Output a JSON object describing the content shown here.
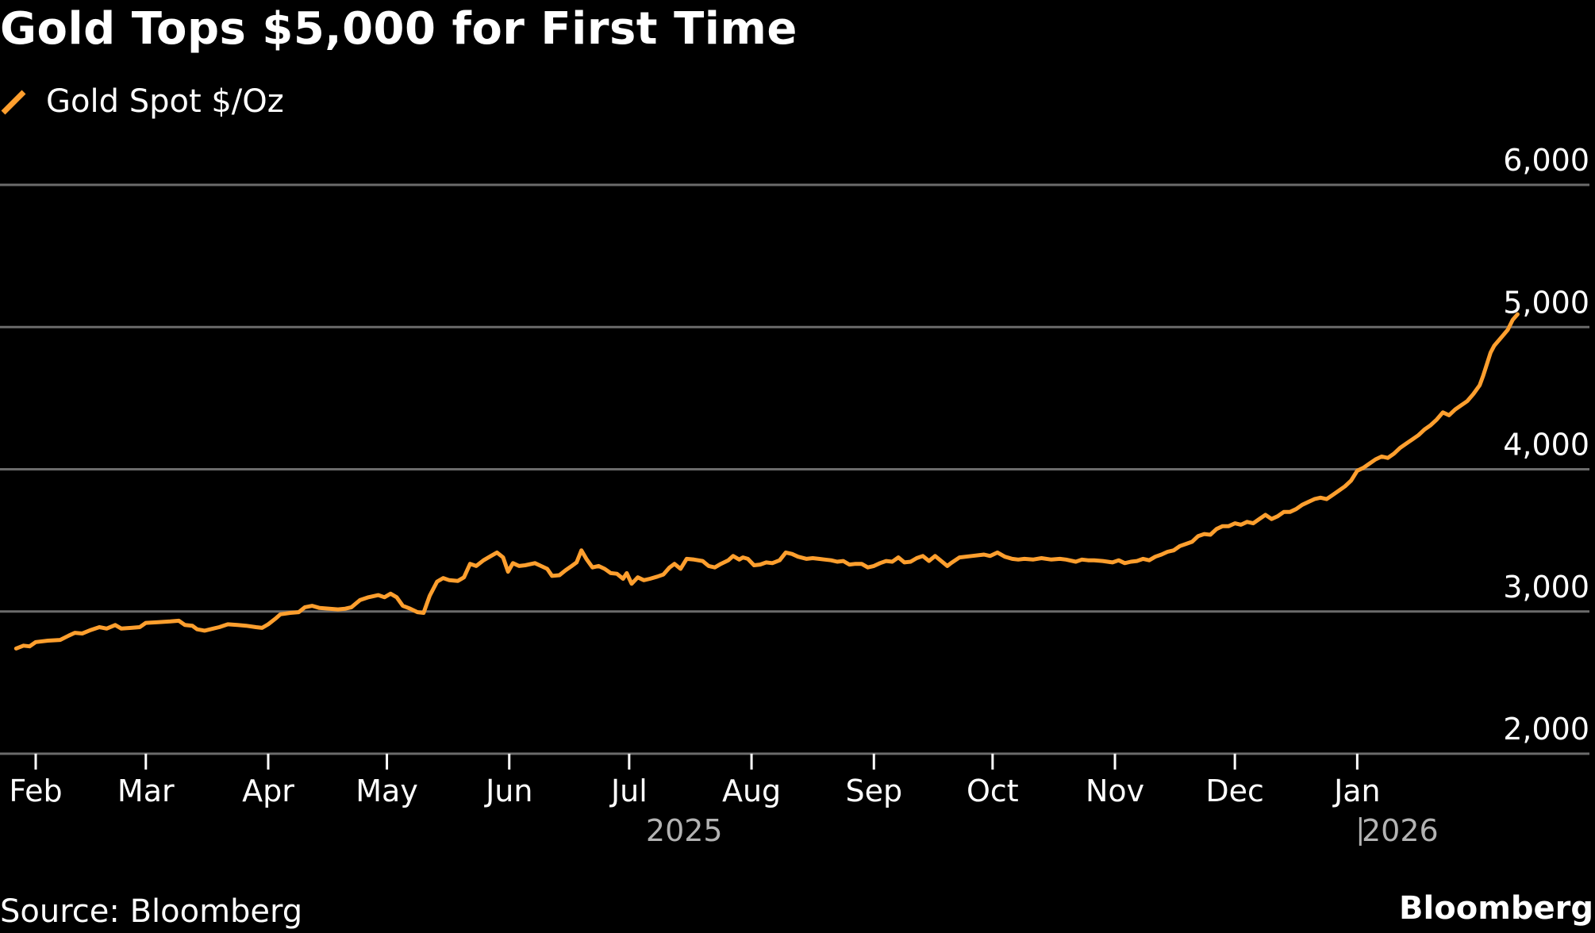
{
  "title": "Gold Tops $5,000 for First Time",
  "legend": {
    "label": "Gold Spot $/Oz",
    "color": "#FF9F2E"
  },
  "source": "Source: Bloomberg",
  "brand": "Bloomberg",
  "colors": {
    "background": "#000000",
    "text": "#FFFFFF",
    "gridline": "#6B6B6B",
    "year_label": "#B3B3B3",
    "series": "#FF9F2E"
  },
  "chart_data": {
    "type": "line",
    "title": "Gold Tops $5,000 for First Time",
    "xlabel": "",
    "ylabel": "",
    "ylim": [
      2000,
      6000
    ],
    "yticks": [
      2000,
      3000,
      4000,
      5000,
      6000
    ],
    "ytick_labels": [
      "2,000",
      "3,000",
      "4,000",
      "5,000",
      "6,000"
    ],
    "xlim": [
      -0.1,
      11.95
    ],
    "month_ticks": [
      {
        "label": "Feb",
        "x": 0
      },
      {
        "label": "Mar",
        "x": 0.9
      },
      {
        "label": "Apr",
        "x": 1.9
      },
      {
        "label": "May",
        "x": 2.87
      },
      {
        "label": "Jun",
        "x": 3.87
      },
      {
        "label": "Jul",
        "x": 4.85
      },
      {
        "label": "Aug",
        "x": 5.85
      },
      {
        "label": "Sep",
        "x": 6.85
      },
      {
        "label": "Oct",
        "x": 7.82
      },
      {
        "label": "Nov",
        "x": 8.82
      },
      {
        "label": "Dec",
        "x": 9.8
      },
      {
        "label": "Jan",
        "x": 10.8
      }
    ],
    "year_labels": [
      {
        "label": "2025",
        "x": 5.3,
        "divider": false
      },
      {
        "label": "2026",
        "x": 11.15,
        "divider": true
      }
    ],
    "series": [
      {
        "name": "Gold Spot $/Oz",
        "points": [
          [
            -0.16,
            2740
          ],
          [
            -0.1,
            2760
          ],
          [
            -0.05,
            2755
          ],
          [
            0,
            2785
          ],
          [
            0.1,
            2795
          ],
          [
            0.2,
            2800
          ],
          [
            0.27,
            2830
          ],
          [
            0.32,
            2850
          ],
          [
            0.38,
            2845
          ],
          [
            0.45,
            2870
          ],
          [
            0.52,
            2890
          ],
          [
            0.58,
            2880
          ],
          [
            0.65,
            2905
          ],
          [
            0.7,
            2880
          ],
          [
            0.78,
            2885
          ],
          [
            0.85,
            2890
          ],
          [
            0.9,
            2920
          ],
          [
            1.0,
            2925
          ],
          [
            1.1,
            2930
          ],
          [
            1.17,
            2935
          ],
          [
            1.22,
            2905
          ],
          [
            1.28,
            2900
          ],
          [
            1.32,
            2875
          ],
          [
            1.38,
            2865
          ],
          [
            1.45,
            2880
          ],
          [
            1.5,
            2890
          ],
          [
            1.57,
            2910
          ],
          [
            1.65,
            2905
          ],
          [
            1.72,
            2900
          ],
          [
            1.8,
            2890
          ],
          [
            1.85,
            2885
          ],
          [
            1.9,
            2910
          ],
          [
            1.96,
            2950
          ],
          [
            2.0,
            2980
          ],
          [
            2.08,
            2990
          ],
          [
            2.15,
            2995
          ],
          [
            2.2,
            3030
          ],
          [
            2.26,
            3040
          ],
          [
            2.32,
            3025
          ],
          [
            2.4,
            3020
          ],
          [
            2.47,
            3015
          ],
          [
            2.53,
            3020
          ],
          [
            2.58,
            3030
          ],
          [
            2.65,
            3080
          ],
          [
            2.72,
            3100
          ],
          [
            2.8,
            3115
          ],
          [
            2.85,
            3100
          ],
          [
            2.9,
            3125
          ],
          [
            2.95,
            3100
          ],
          [
            3.0,
            3040
          ],
          [
            3.06,
            3020
          ],
          [
            3.12,
            2995
          ],
          [
            3.17,
            2990
          ],
          [
            3.22,
            3110
          ],
          [
            3.28,
            3210
          ],
          [
            3.33,
            3235
          ],
          [
            3.38,
            3220
          ],
          [
            3.45,
            3215
          ],
          [
            3.5,
            3240
          ],
          [
            3.55,
            3335
          ],
          [
            3.6,
            3320
          ],
          [
            3.66,
            3360
          ],
          [
            3.72,
            3390
          ],
          [
            3.77,
            3415
          ],
          [
            3.82,
            3380
          ],
          [
            3.86,
            3280
          ],
          [
            3.9,
            3340
          ],
          [
            3.95,
            3320
          ],
          [
            4.0,
            3325
          ],
          [
            4.08,
            3340
          ],
          [
            4.13,
            3320
          ],
          [
            4.18,
            3300
          ],
          [
            4.22,
            3250
          ],
          [
            4.28,
            3255
          ],
          [
            4.33,
            3290
          ],
          [
            4.38,
            3320
          ],
          [
            4.42,
            3345
          ],
          [
            4.46,
            3430
          ],
          [
            4.5,
            3370
          ],
          [
            4.55,
            3310
          ],
          [
            4.6,
            3320
          ],
          [
            4.65,
            3300
          ],
          [
            4.7,
            3270
          ],
          [
            4.75,
            3265
          ],
          [
            4.8,
            3230
          ],
          [
            4.83,
            3270
          ],
          [
            4.87,
            3195
          ],
          [
            4.92,
            3240
          ],
          [
            4.97,
            3220
          ],
          [
            5.02,
            3230
          ],
          [
            5.08,
            3245
          ],
          [
            5.13,
            3260
          ],
          [
            5.18,
            3310
          ],
          [
            5.22,
            3335
          ],
          [
            5.27,
            3300
          ],
          [
            5.32,
            3370
          ],
          [
            5.38,
            3365
          ],
          [
            5.45,
            3355
          ],
          [
            5.5,
            3320
          ],
          [
            5.55,
            3310
          ],
          [
            5.6,
            3335
          ],
          [
            5.66,
            3360
          ],
          [
            5.7,
            3390
          ],
          [
            5.75,
            3365
          ],
          [
            5.78,
            3380
          ],
          [
            5.82,
            3370
          ],
          [
            5.87,
            3325
          ],
          [
            5.92,
            3330
          ],
          [
            5.97,
            3345
          ],
          [
            6.02,
            3340
          ],
          [
            6.08,
            3360
          ],
          [
            6.13,
            3415
          ],
          [
            6.18,
            3405
          ],
          [
            6.23,
            3385
          ],
          [
            6.3,
            3370
          ],
          [
            6.35,
            3375
          ],
          [
            6.4,
            3370
          ],
          [
            6.45,
            3365
          ],
          [
            6.5,
            3360
          ],
          [
            6.55,
            3350
          ],
          [
            6.6,
            3355
          ],
          [
            6.65,
            3330
          ],
          [
            6.7,
            3335
          ],
          [
            6.75,
            3335
          ],
          [
            6.8,
            3310
          ],
          [
            6.85,
            3320
          ],
          [
            6.9,
            3340
          ],
          [
            6.95,
            3355
          ],
          [
            7.0,
            3350
          ],
          [
            7.05,
            3380
          ],
          [
            7.1,
            3345
          ],
          [
            7.15,
            3350
          ],
          [
            7.2,
            3375
          ],
          [
            7.25,
            3390
          ],
          [
            7.3,
            3355
          ],
          [
            7.35,
            3390
          ],
          [
            7.4,
            3355
          ],
          [
            7.45,
            3320
          ],
          [
            7.48,
            3340
          ],
          [
            7.55,
            3380
          ],
          [
            7.65,
            3390
          ],
          [
            7.75,
            3400
          ],
          [
            7.8,
            3390
          ],
          [
            7.86,
            3415
          ],
          [
            7.92,
            3385
          ],
          [
            7.98,
            3370
          ],
          [
            8.03,
            3365
          ],
          [
            8.08,
            3370
          ],
          [
            8.15,
            3365
          ],
          [
            8.22,
            3375
          ],
          [
            8.3,
            3365
          ],
          [
            8.37,
            3370
          ],
          [
            8.42,
            3365
          ],
          [
            8.5,
            3350
          ],
          [
            8.55,
            3365
          ],
          [
            8.6,
            3360
          ],
          [
            8.65,
            3360
          ],
          [
            8.72,
            3355
          ],
          [
            8.8,
            3345
          ],
          [
            8.85,
            3360
          ],
          [
            8.9,
            3340
          ],
          [
            8.95,
            3350
          ],
          [
            9.0,
            3355
          ],
          [
            9.05,
            3370
          ],
          [
            9.1,
            3360
          ],
          [
            9.15,
            3385
          ],
          [
            9.2,
            3400
          ],
          [
            9.25,
            3420
          ],
          [
            9.3,
            3430
          ],
          [
            9.35,
            3460
          ],
          [
            9.4,
            3475
          ],
          [
            9.45,
            3490
          ],
          [
            9.5,
            3530
          ],
          [
            9.55,
            3545
          ],
          [
            9.6,
            3540
          ],
          [
            9.65,
            3580
          ],
          [
            9.7,
            3600
          ],
          [
            9.75,
            3600
          ],
          [
            9.8,
            3620
          ],
          [
            9.85,
            3610
          ],
          [
            9.9,
            3630
          ],
          [
            9.95,
            3620
          ],
          [
            10.0,
            3650
          ],
          [
            10.05,
            3680
          ],
          [
            10.1,
            3650
          ],
          [
            10.15,
            3670
          ],
          [
            10.2,
            3700
          ],
          [
            10.25,
            3700
          ],
          [
            10.3,
            3720
          ],
          [
            10.35,
            3750
          ],
          [
            10.4,
            3770
          ],
          [
            10.45,
            3790
          ],
          [
            10.5,
            3800
          ],
          [
            10.55,
            3790
          ],
          [
            10.6,
            3820
          ],
          [
            10.65,
            3850
          ],
          [
            10.7,
            3880
          ],
          [
            10.75,
            3920
          ],
          [
            10.8,
            3990
          ],
          [
            10.85,
            4010
          ],
          [
            10.9,
            4040
          ],
          [
            10.95,
            4070
          ],
          [
            11.0,
            4090
          ],
          [
            11.05,
            4080
          ],
          [
            11.1,
            4110
          ],
          [
            11.15,
            4150
          ],
          [
            11.2,
            4180
          ],
          [
            11.25,
            4210
          ],
          [
            11.3,
            4240
          ],
          [
            11.35,
            4280
          ],
          [
            11.4,
            4310
          ],
          [
            11.45,
            4350
          ],
          [
            11.5,
            4400
          ],
          [
            11.55,
            4380
          ],
          [
            11.6,
            4420
          ],
          [
            11.65,
            4450
          ],
          [
            11.7,
            4480
          ],
          [
            11.75,
            4530
          ],
          [
            11.8,
            4590
          ],
          [
            11.83,
            4660
          ],
          [
            11.86,
            4740
          ],
          [
            11.89,
            4820
          ],
          [
            11.92,
            4870
          ],
          [
            11.95,
            4900
          ],
          [
            11.99,
            4940
          ],
          [
            12.03,
            4980
          ],
          [
            12.07,
            5050
          ],
          [
            12.11,
            5090
          ]
        ]
      }
    ]
  }
}
